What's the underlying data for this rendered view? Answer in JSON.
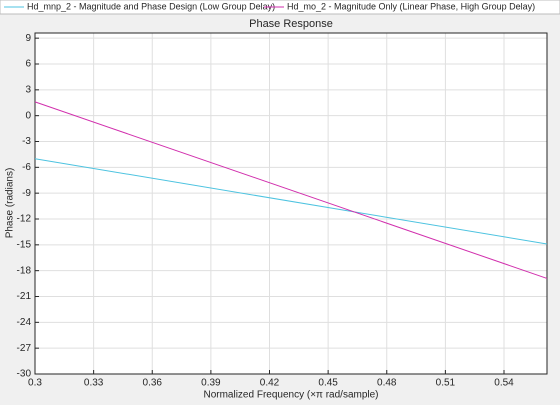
{
  "chart_data": {
    "type": "line",
    "title": "Phase Response",
    "xlabel": "Normalized Frequency (×π rad/sample)",
    "ylabel": "Phase (radians)",
    "x": [
      0.3,
      0.562
    ],
    "series": [
      {
        "name": "Hd_mnp_2 - Magnitude and Phase Design (Low Group Delay)",
        "color": "#4dc3e0",
        "values": [
          -5,
          -14.9
        ]
      },
      {
        "name": "Hd_mo_2 - Magnitude Only (Linear Phase, High Group Delay)",
        "color": "#d12fad",
        "values": [
          1.6,
          -18.9
        ]
      }
    ],
    "xlim": [
      0.3,
      0.562
    ],
    "xticks": [
      0.3,
      0.33,
      0.36,
      0.39,
      0.42,
      0.45,
      0.48,
      0.51,
      0.54
    ],
    "ylim": [
      -30,
      9.6
    ],
    "yticks": [
      -30,
      -27,
      -24,
      -21,
      -18,
      -15,
      -12,
      -9,
      -6,
      -3,
      0,
      3,
      6,
      9
    ],
    "grid": true
  }
}
